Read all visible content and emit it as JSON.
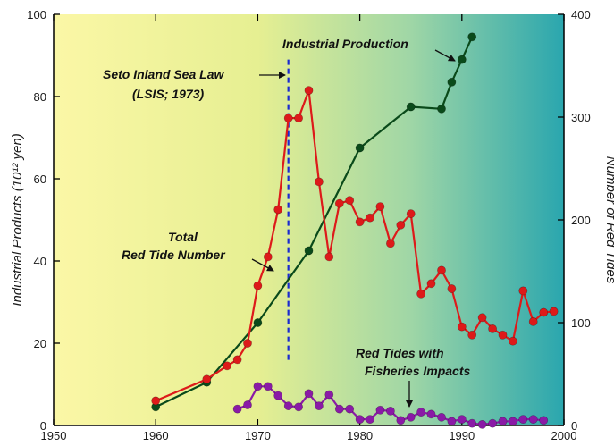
{
  "chart_data": {
    "type": "line",
    "xlabel": "",
    "ylabel": "Industrial Products (10¹² yen)",
    "y2label": "Number of Red Tides",
    "xlim": [
      1950,
      2000
    ],
    "ylim": [
      0,
      100
    ],
    "y2lim": [
      0,
      400
    ],
    "x_ticks": [
      "1950",
      "1960",
      "1970",
      "1980",
      "1990",
      "2000"
    ],
    "y_ticks": [
      "0",
      "20",
      "40",
      "60",
      "80",
      "100"
    ],
    "y2_ticks": [
      "0",
      "100",
      "200",
      "300",
      "400"
    ],
    "background": "horizontal gradient yellow to teal",
    "grid": false,
    "series": [
      {
        "name": "Industrial Production",
        "axis": "left",
        "color": "#0a4a1a",
        "x": [
          1960,
          1965,
          1970,
          1975,
          1980,
          1985,
          1988,
          1989,
          1990,
          1991
        ],
        "y": [
          4.5,
          10.5,
          25,
          42.5,
          67.5,
          77.5,
          77,
          83.5,
          89,
          94.5
        ]
      },
      {
        "name": "Total Red Tide Number",
        "axis": "right",
        "color": "#dd1a1a",
        "x": [
          1960,
          1965,
          1967,
          1968,
          1969,
          1970,
          1971,
          1972,
          1973,
          1974,
          1975,
          1976,
          1977,
          1978,
          1979,
          1980,
          1981,
          1982,
          1983,
          1984,
          1985,
          1986,
          1987,
          1988,
          1989,
          1990,
          1991,
          1992,
          1993,
          1994,
          1995,
          1996,
          1997,
          1998,
          1999
        ],
        "y": [
          24,
          45,
          58,
          64,
          80,
          136,
          164,
          210,
          299,
          299,
          326,
          237,
          164,
          216,
          219,
          198,
          202,
          213,
          177,
          195,
          206,
          128,
          138,
          151,
          133,
          96,
          88,
          105,
          94,
          88,
          82,
          131,
          101,
          110,
          111
        ]
      },
      {
        "name": "Red Tides with Fisheries Impacts",
        "axis": "right",
        "color": "#8a1aa6",
        "x": [
          1968,
          1969,
          1970,
          1971,
          1972,
          1973,
          1974,
          1975,
          1976,
          1977,
          1978,
          1979,
          1980,
          1981,
          1982,
          1983,
          1984,
          1985,
          1986,
          1987,
          1988,
          1989,
          1990,
          1991,
          1992,
          1993,
          1994,
          1995,
          1996,
          1997,
          1998
        ],
        "y": [
          16,
          20,
          38,
          38,
          29,
          19,
          18,
          31,
          19,
          30,
          16,
          16,
          6,
          6,
          15,
          14,
          5,
          8,
          13,
          11,
          8,
          4,
          6,
          2,
          1,
          2,
          4,
          4,
          6,
          6,
          5
        ]
      }
    ],
    "vertical_line": {
      "x": 1973,
      "style": "dashed",
      "color": "#1a2ad0"
    },
    "annotations": {
      "industrial_production": "Industrial Production",
      "seto_law_line1": "Seto Inland Sea Law",
      "seto_law_line2": "(LSIS; 1973)",
      "total_line1": "Total",
      "total_line2": "Red Tide Number",
      "fisheries_line1": "Red Tides with",
      "fisheries_line2": "Fisheries Impacts"
    }
  }
}
